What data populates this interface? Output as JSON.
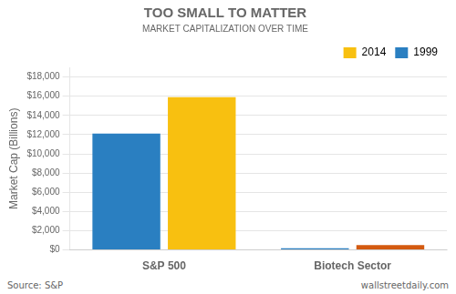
{
  "chart_data": {
    "type": "bar",
    "title": "TOO SMALL TO MATTER",
    "subtitle": "MARKET CAPITALIZATION OVER TIME",
    "categories": [
      "S&P 500",
      "Biotech Sector"
    ],
    "series": [
      {
        "name": "1999",
        "color": "#2a7fc1",
        "values": [
          12100,
          180
        ]
      },
      {
        "name": "2014",
        "color": "#f8c010",
        "colors": [
          "#f8c010",
          "#d45a10"
        ],
        "values": [
          15900,
          500
        ]
      }
    ],
    "ylabel": "Market Cap (Billions)",
    "ylim": [
      0,
      19000
    ],
    "yticks": [
      {
        "value": 0,
        "label": "$0"
      },
      {
        "value": 2000,
        "label": "$2,000"
      },
      {
        "value": 4000,
        "label": "$4,000"
      },
      {
        "value": 6000,
        "label": "$6,000"
      },
      {
        "value": 8000,
        "label": "$8,000"
      },
      {
        "value": 10000,
        "label": "$10,000"
      },
      {
        "value": 12000,
        "label": "$12,000"
      },
      {
        "value": 14000,
        "label": "$14,000"
      },
      {
        "value": 16000,
        "label": "$16,000"
      },
      {
        "value": 18000,
        "label": "$18,000"
      }
    ],
    "grid": true,
    "legend": "upper right",
    "annotations": [
      "Source: S&P",
      "wallstreetdaily.com"
    ]
  }
}
